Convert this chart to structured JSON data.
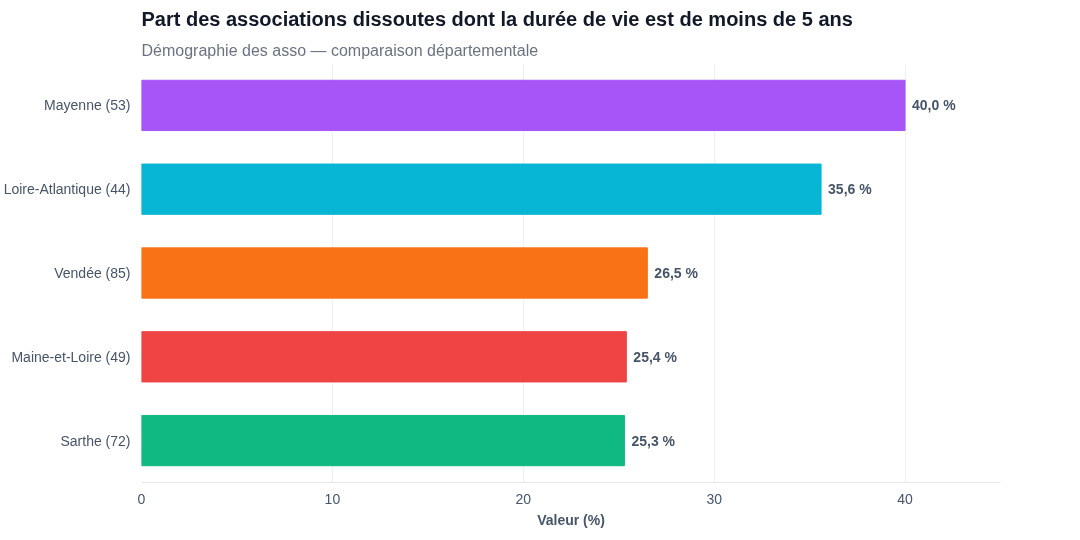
{
  "chart_data": {
    "type": "bar",
    "orientation": "horizontal",
    "title": "Part des associations dissoutes dont la durée de vie est de moins de 5 ans",
    "subtitle": "Démographie des asso — comparaison départementale",
    "xlabel": "Valeur (%)",
    "categories": [
      "Mayenne (53)",
      "Loire-Atlantique (44)",
      "Vendée (85)",
      "Maine-et-Loire (49)",
      "Sarthe (72)"
    ],
    "values": [
      40.0,
      35.6,
      26.5,
      25.4,
      25.3
    ],
    "colors": [
      "#a855f7",
      "#06b6d4",
      "#f97316",
      "#ef4444",
      "#10b981"
    ],
    "value_labels": [
      "40,0 %",
      "35,6 %",
      "26,5 %",
      "25,4 %",
      "25,3 %"
    ],
    "xlim": [
      0,
      45
    ],
    "xticks": [
      0,
      10,
      20,
      30,
      40
    ],
    "grid": "x"
  }
}
